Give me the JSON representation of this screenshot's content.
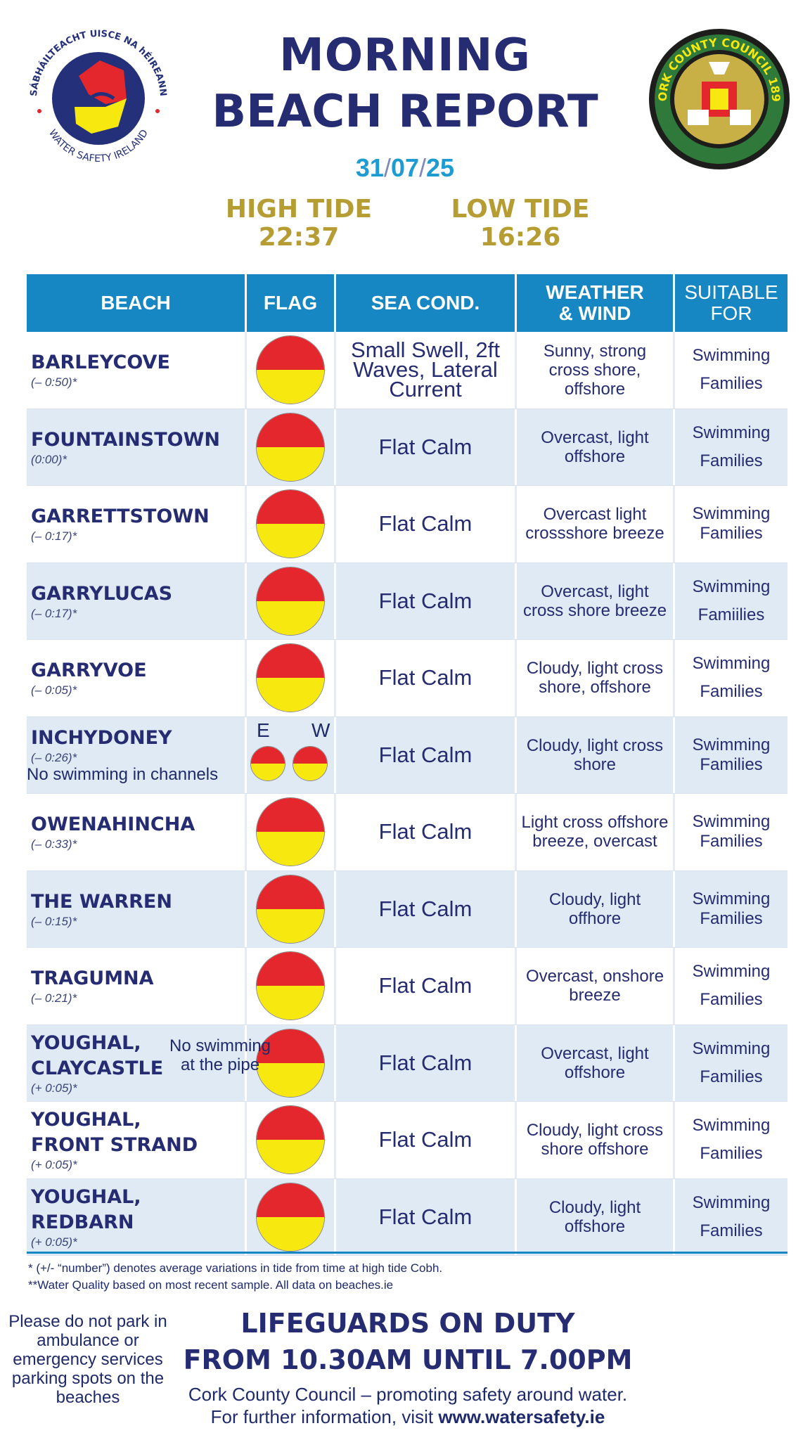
{
  "header": {
    "left_logo_text": "SÁBHÁILTEACHT UISCE NA hÉIREANN · WATER SAFETY IRELAND",
    "right_logo_text": "CORK COUNTY COUNCIL 1899",
    "title_line1": "MORNING",
    "title_line2": "BEACH REPORT",
    "date_day": "31",
    "date_month": "07",
    "date_year": "25",
    "date_sep": "/",
    "high_tide_label": "HIGH TIDE",
    "high_tide_time": "22:37",
    "low_tide_label": "LOW TIDE",
    "low_tide_time": "16:26"
  },
  "table": {
    "headers": {
      "beach": "BEACH",
      "flag": "FLAG",
      "sea": "SEA COND.",
      "weather_l1": "WEATHER",
      "weather_l2": "& WIND",
      "suitable_l1": "SUITABLE",
      "suitable_l2": "FOR"
    },
    "rows": [
      {
        "name": "BARLEYCOVE",
        "tide": "(– 0:50)*",
        "sea": "Small Swell, 2ft Waves, Lateral Current",
        "weather": "Sunny, strong cross shore, offshore",
        "s1": "Swimming",
        "s2": "Families",
        "flag_colors": [
          "#e3272d",
          "#f7e80f"
        ]
      },
      {
        "name": "FOUNTAINSTOWN",
        "tide": "(0:00)*",
        "sea": "Flat Calm",
        "weather": "Overcast, light offshore",
        "s1": "Swimming",
        "s2": "Families",
        "flag_colors": [
          "#e3272d",
          "#f7e80f"
        ]
      },
      {
        "name": "GARRETTSTOWN",
        "tide": "(– 0:17)*",
        "sea": "Flat Calm",
        "weather": "Overcast light crossshore breeze",
        "s1": "Swimming",
        "s2": "Families",
        "flag_colors": [
          "#e3272d",
          "#f7e80f"
        ]
      },
      {
        "name": "GARRYLUCAS",
        "tide": "(– 0:17)*",
        "sea": "Flat Calm",
        "weather": "Overcast, light cross shore breeze",
        "s1": "Swimming",
        "s2": "Famiilies",
        "flag_colors": [
          "#e3272d",
          "#f7e80f"
        ]
      },
      {
        "name": "GARRYVOE",
        "tide": "(– 0:05)*",
        "sea": "Flat Calm",
        "weather": "Cloudy, light cross shore, offshore",
        "s1": "Swimming",
        "s2": "Families",
        "flag_colors": [
          "#e3272d",
          "#f7e80f"
        ]
      },
      {
        "name": "INCHYDONEY",
        "tide": "(– 0:26)*",
        "note": "No swimming in channels",
        "flag_e": "E",
        "flag_w": "W",
        "sea": "Flat Calm",
        "weather": "Cloudy, light cross shore",
        "s1": "Swimming",
        "s2": "Families",
        "flag_colors": [
          "#e3272d",
          "#f7e80f"
        ]
      },
      {
        "name": "OWENAHINCHA",
        "tide": "(– 0:33)*",
        "sea": "Flat Calm",
        "weather": "Light cross offshore breeze, overcast",
        "s1": "Swimming",
        "s2": "Families",
        "flag_colors": [
          "#e3272d",
          "#f7e80f"
        ]
      },
      {
        "name": "THE WARREN",
        "tide": "(– 0:15)*",
        "sea": "Flat Calm",
        "weather": "Cloudy, light offhore",
        "s1": "Swimming",
        "s2": "Families",
        "flag_colors": [
          "#e3272d",
          "#f7e80f"
        ]
      },
      {
        "name": "TRAGUMNA",
        "tide": "(– 0:21)*",
        "sea": "Flat Calm",
        "weather": "Overcast, onshore breeze",
        "s1": "Swimming",
        "s2": "Families",
        "flag_colors": [
          "#e3272d",
          "#f7e80f"
        ]
      },
      {
        "name_l1": "YOUGHAL,",
        "name_l2": "CLAYCASTLE",
        "tide": "(+ 0:05)*",
        "side_note": "No swimming at the pipe",
        "sea": "Flat Calm",
        "weather": "Overcast, light offshore",
        "s1": "Swimming",
        "s2": "Families",
        "flag_colors": [
          "#e3272d",
          "#f7e80f"
        ]
      },
      {
        "name_l1": "YOUGHAL,",
        "name_l2": "FRONT STRAND",
        "tide": "(+ 0:05)*",
        "sea": "Flat Calm",
        "weather": "Cloudy, light cross shore offshore",
        "s1": "Swimming",
        "s2": "Families",
        "flag_colors": [
          "#e3272d",
          "#f7e80f"
        ]
      },
      {
        "name_l1": "YOUGHAL,",
        "name_l2": "REDBARN",
        "tide": "(+ 0:05)*",
        "sea": "Flat Calm",
        "weather": "Cloudy, light offshore",
        "s1": "Swimming",
        "s2": "Families",
        "flag_colors": [
          "#e3272d",
          "#f7e80f"
        ]
      }
    ]
  },
  "footer": {
    "note1": "* (+/- “number”) denotes average variations in tide from time at high tide Cobh.",
    "note2": "**Water Quality based on most recent sample. All data on beaches.ie",
    "parking": "Please do not park in ambulance or emergency services parking spots on the beaches",
    "lifeguards_l1": "LIFEGUARDS ON DUTY",
    "lifeguards_from": "FROM",
    "lifeguards_start": "10.30AM",
    "lifeguards_until": "UNTIL",
    "lifeguards_end": "7.00PM",
    "council_line": "Cork County Council – promoting safety around water.",
    "info_prefix": "For further information, visit",
    "info_url": "www.watersafety.ie"
  }
}
